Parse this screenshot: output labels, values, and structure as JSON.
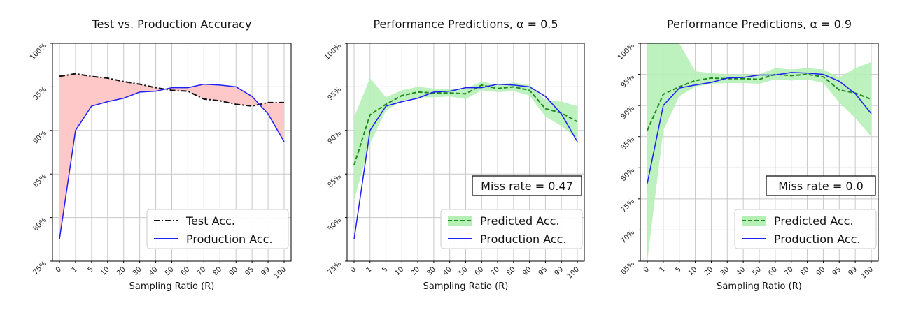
{
  "colors": {
    "production": "#1f1ff5",
    "test": "#111111",
    "predicted": "#1e8a1e",
    "gap_fill": "#ffc8c8",
    "band_fill": "#b6f0b6",
    "grid": "#c8c8c8"
  },
  "chart_data": [
    {
      "type": "line",
      "title": "Test vs. Production Accuracy",
      "xlabel": "Sampling Ratio (R)",
      "ylabel": "",
      "categories": [
        "0",
        "1",
        "5",
        "10",
        "20",
        "30",
        "40",
        "50",
        "60",
        "70",
        "80",
        "90",
        "95",
        "99",
        "100"
      ],
      "ylim": [
        75,
        100
      ],
      "yticks": [
        75,
        80,
        85,
        90,
        95,
        100
      ],
      "ytick_labels": [
        "75%",
        "80%",
        "85%",
        "90%",
        "95%",
        "100%"
      ],
      "grid": true,
      "legend_position": "lower-right",
      "fill_between": "test-production",
      "series": [
        {
          "name": "Test Acc.",
          "style": "dashdot",
          "color": "#111111",
          "values": [
            96.2,
            96.5,
            96.2,
            96.0,
            95.6,
            95.3,
            94.9,
            94.6,
            94.5,
            93.6,
            93.4,
            93.0,
            92.8,
            93.2,
            93.2
          ]
        },
        {
          "name": "Production Acc.",
          "style": "solid",
          "color": "#1f1ff5",
          "values": [
            77.5,
            90.0,
            92.8,
            93.3,
            93.7,
            94.4,
            94.5,
            94.9,
            94.9,
            95.3,
            95.2,
            95.0,
            93.9,
            91.9,
            88.7
          ]
        }
      ],
      "annotation": ""
    },
    {
      "type": "line",
      "title": "Performance Predictions, α = 0.5",
      "xlabel": "Sampling Ratio (R)",
      "ylabel": "",
      "categories": [
        "0",
        "1",
        "5",
        "10",
        "20",
        "30",
        "40",
        "50",
        "60",
        "70",
        "80",
        "90",
        "95",
        "99",
        "100"
      ],
      "ylim": [
        75,
        100
      ],
      "yticks": [
        75,
        80,
        85,
        90,
        95,
        100
      ],
      "ytick_labels": [
        "75%",
        "80%",
        "85%",
        "90%",
        "95%",
        "100%"
      ],
      "grid": true,
      "legend_position": "lower-right",
      "series": [
        {
          "name": "Predicted Acc.",
          "style": "dashed",
          "color": "#1e8a1e",
          "values": [
            86.0,
            91.8,
            93.0,
            94.0,
            94.4,
            94.3,
            94.3,
            94.2,
            95.2,
            94.8,
            95.0,
            94.6,
            92.5,
            92.0,
            91.0
          ],
          "band_lower": [
            82.0,
            88.5,
            92.3,
            93.4,
            93.8,
            93.8,
            93.9,
            93.6,
            94.6,
            94.4,
            94.5,
            94.0,
            91.6,
            90.5,
            89.0
          ],
          "band_upper": [
            91.5,
            96.0,
            93.8,
            94.6,
            95.0,
            94.8,
            94.7,
            94.8,
            95.6,
            95.2,
            95.5,
            95.2,
            93.5,
            93.3,
            92.8
          ]
        },
        {
          "name": "Production Acc.",
          "style": "solid",
          "color": "#1f1ff5",
          "values": [
            77.5,
            90.0,
            92.8,
            93.3,
            93.7,
            94.4,
            94.5,
            94.9,
            94.9,
            95.3,
            95.2,
            95.0,
            93.9,
            91.9,
            88.7
          ]
        }
      ],
      "annotation": "Miss rate = 0.47"
    },
    {
      "type": "line",
      "title": "Performance Predictions, α = 0.9",
      "xlabel": "Sampling Ratio (R)",
      "ylabel": "",
      "categories": [
        "0",
        "1",
        "5",
        "10",
        "20",
        "30",
        "40",
        "50",
        "60",
        "70",
        "80",
        "90",
        "95",
        "99",
        "100"
      ],
      "ylim": [
        65,
        100
      ],
      "yticks": [
        65,
        70,
        75,
        80,
        85,
        90,
        95,
        100
      ],
      "ytick_labels": [
        "65%",
        "70%",
        "75%",
        "80%",
        "85%",
        "90%",
        "95%",
        "100%"
      ],
      "grid": true,
      "legend_position": "lower-right",
      "series": [
        {
          "name": "Predicted Acc.",
          "style": "dashed",
          "color": "#1e8a1e",
          "values": [
            86.0,
            91.8,
            93.0,
            94.0,
            94.4,
            94.3,
            94.3,
            94.2,
            95.0,
            94.8,
            95.0,
            94.6,
            92.5,
            92.0,
            91.0
          ],
          "band_lower": [
            65.0,
            86.0,
            91.5,
            93.0,
            93.5,
            93.6,
            93.6,
            93.5,
            94.2,
            94.0,
            94.2,
            93.6,
            90.5,
            88.0,
            85.0
          ],
          "band_upper": [
            100.0,
            100.0,
            100.0,
            95.5,
            95.2,
            95.0,
            95.0,
            95.0,
            96.0,
            95.8,
            96.0,
            95.8,
            94.5,
            96.0,
            97.0
          ]
        },
        {
          "name": "Production Acc.",
          "style": "solid",
          "color": "#1f1ff5",
          "values": [
            77.5,
            90.0,
            92.8,
            93.3,
            93.7,
            94.4,
            94.5,
            94.9,
            94.9,
            95.3,
            95.2,
            95.0,
            93.9,
            91.9,
            88.7
          ]
        }
      ],
      "annotation": "Miss rate = 0.0"
    }
  ]
}
